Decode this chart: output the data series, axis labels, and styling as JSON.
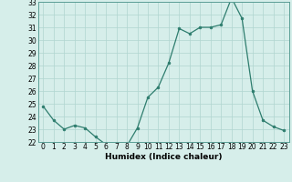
{
  "x": [
    0,
    1,
    2,
    3,
    4,
    5,
    6,
    7,
    8,
    9,
    10,
    11,
    12,
    13,
    14,
    15,
    16,
    17,
    18,
    19,
    20,
    21,
    22,
    23
  ],
  "y": [
    24.8,
    23.7,
    23.0,
    23.3,
    23.1,
    22.4,
    21.8,
    21.7,
    21.7,
    23.1,
    25.5,
    26.3,
    28.2,
    30.9,
    30.5,
    31.0,
    31.0,
    31.2,
    33.3,
    31.7,
    26.0,
    23.7,
    23.2,
    22.9
  ],
  "xlabel": "Humidex (Indice chaleur)",
  "ylim": [
    22,
    33
  ],
  "xlim": [
    -0.5,
    23.5
  ],
  "yticks": [
    22,
    23,
    24,
    25,
    26,
    27,
    28,
    29,
    30,
    31,
    32,
    33
  ],
  "xticks": [
    0,
    1,
    2,
    3,
    4,
    5,
    6,
    7,
    8,
    9,
    10,
    11,
    12,
    13,
    14,
    15,
    16,
    17,
    18,
    19,
    20,
    21,
    22,
    23
  ],
  "line_color": "#2e7d6e",
  "marker_color": "#2e7d6e",
  "bg_color": "#d6eeea",
  "grid_color": "#b0d5d0",
  "label_fontsize": 6.5,
  "tick_fontsize": 5.5
}
